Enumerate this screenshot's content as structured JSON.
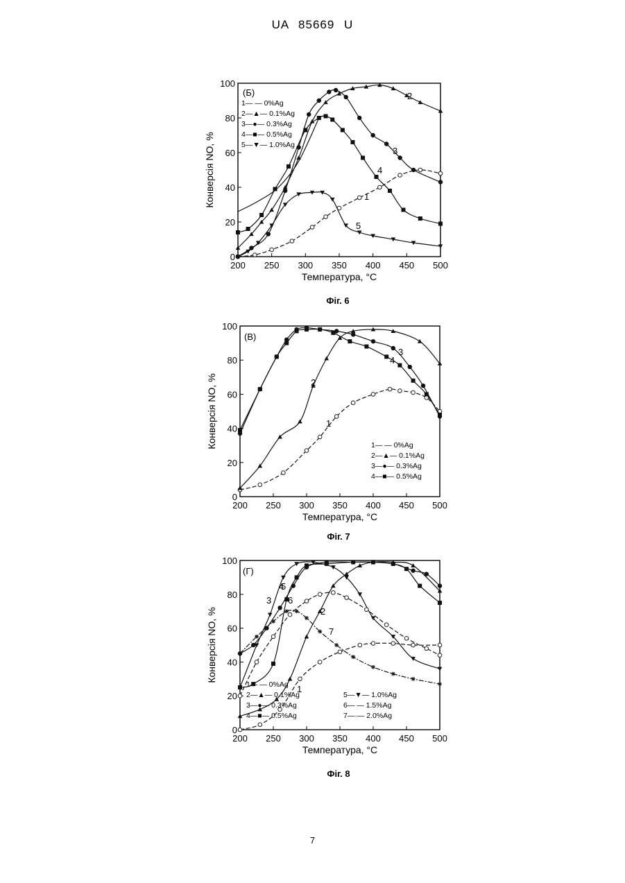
{
  "header": {
    "patent": "UA   85669   U"
  },
  "page_number": "7",
  "chart_data": [
    {
      "type": "line",
      "figure_label": "Фіг. 6",
      "panel_label": "(Б)",
      "xlabel": "Температура, °С",
      "ylabel": "Конверсія NO, %",
      "xlim": [
        200,
        500
      ],
      "ylim": [
        0,
        100
      ],
      "xticks": [
        200,
        250,
        300,
        350,
        400,
        450,
        500
      ],
      "yticks": [
        0,
        20,
        40,
        60,
        80,
        100
      ],
      "legend_position": "top-left",
      "series": [
        {
          "name": "0%Ag",
          "legend_label": "1— — 0%Ag",
          "curve_label": "1",
          "marker": "circle-open",
          "dashed": true,
          "x": [
            200,
            225,
            250,
            280,
            310,
            330,
            350,
            380,
            410,
            440,
            470,
            500
          ],
          "y": [
            0,
            1,
            4,
            9,
            17,
            23,
            28,
            34,
            40,
            47,
            50,
            48
          ]
        },
        {
          "name": "0.1%Ag",
          "legend_label": "2—▲— 0.1%Ag",
          "curve_label": "2",
          "marker": "triangle",
          "x": [
            200,
            220,
            235,
            250,
            270,
            290,
            310,
            330,
            350,
            370,
            390,
            410,
            430,
            450,
            470,
            500
          ],
          "y": [
            5,
            13,
            20,
            27,
            40,
            57,
            78,
            89,
            94,
            97,
            98,
            99,
            97,
            93,
            89,
            84
          ]
        },
        {
          "name": "0.3%Ag",
          "legend_label": "3—●— 0.3%Ag",
          "curve_label": "3",
          "marker": "circle-filled",
          "x": [
            200,
            220,
            245,
            270,
            290,
            305,
            320,
            335,
            345,
            360,
            380,
            400,
            420,
            440,
            460,
            500
          ],
          "y": [
            0,
            5,
            13,
            38,
            63,
            82,
            90,
            95,
            96,
            92,
            80,
            70,
            65,
            57,
            50,
            43
          ]
        },
        {
          "name": "0.5%Ag",
          "legend_label": "4—■— 0.5%Ag",
          "curve_label": "4",
          "marker": "square",
          "x": [
            200,
            215,
            235,
            255,
            275,
            300,
            320,
            330,
            340,
            355,
            370,
            385,
            405,
            425,
            445,
            470,
            500
          ],
          "y": [
            14,
            16,
            24,
            39,
            52,
            73,
            80,
            81,
            79,
            73,
            66,
            57,
            46,
            38,
            27,
            22,
            19
          ]
        },
        {
          "name": "1.0%Ag",
          "legend_label": "5—▼— 1.0%Ag",
          "curve_label": "5",
          "marker": "triangle-down",
          "x": [
            200,
            215,
            230,
            250,
            270,
            290,
            310,
            325,
            340,
            360,
            380,
            400,
            430,
            460,
            500
          ],
          "y": [
            0,
            3,
            8,
            18,
            30,
            36,
            37,
            37,
            33,
            18,
            14,
            12,
            10,
            8,
            6
          ]
        },
        {
          "name": "",
          "curve_label": "",
          "marker": "none",
          "x": [
            200,
            230,
            260,
            290,
            320
          ],
          "y": [
            26,
            32,
            40,
            55,
            80
          ]
        }
      ]
    },
    {
      "type": "line",
      "figure_label": "Фіг. 7",
      "panel_label": "(В)",
      "xlabel": "Температура, °С",
      "ylabel": "Конверсія NO, %",
      "xlim": [
        200,
        500
      ],
      "ylim": [
        0,
        100
      ],
      "xticks": [
        200,
        250,
        300,
        350,
        400,
        450,
        500
      ],
      "yticks": [
        0,
        20,
        40,
        60,
        80,
        100
      ],
      "legend_position": "bottom-right",
      "series": [
        {
          "name": "0%Ag",
          "legend_label": "1— — 0%Ag",
          "curve_label": "1",
          "marker": "circle-open",
          "dashed": true,
          "x": [
            200,
            230,
            265,
            300,
            320,
            345,
            370,
            400,
            425,
            440,
            460,
            480,
            500
          ],
          "y": [
            4,
            7,
            14,
            27,
            35,
            47,
            55,
            60,
            63,
            62,
            61,
            58,
            50
          ]
        },
        {
          "name": "0.1%Ag",
          "legend_label": "2—▲— 0.1%Ag",
          "curve_label": "2",
          "marker": "triangle",
          "x": [
            200,
            230,
            260,
            290,
            310,
            330,
            350,
            370,
            400,
            430,
            470,
            500
          ],
          "y": [
            5,
            18,
            35,
            44,
            65,
            81,
            93,
            97,
            98,
            97,
            91,
            78
          ]
        },
        {
          "name": "0.3%Ag",
          "legend_label": "3—●— 0.3%Ag",
          "curve_label": "3",
          "marker": "circle-filled",
          "x": [
            200,
            230,
            255,
            270,
            285,
            300,
            320,
            345,
            370,
            400,
            430,
            455,
            475,
            500
          ],
          "y": [
            37,
            63,
            82,
            92,
            98,
            99,
            98,
            97,
            95,
            91,
            87,
            76,
            65,
            47
          ]
        },
        {
          "name": "0.5%Ag",
          "legend_label": "4—■— 0.5%Ag",
          "curve_label": "4",
          "marker": "square",
          "x": [
            200,
            230,
            255,
            270,
            285,
            300,
            320,
            340,
            365,
            390,
            420,
            440,
            460,
            480,
            500
          ],
          "y": [
            39,
            63,
            82,
            90,
            97,
            98,
            98,
            96,
            91,
            88,
            82,
            77,
            68,
            60,
            48
          ]
        }
      ]
    },
    {
      "type": "line",
      "figure_label": "Фіг. 8",
      "panel_label": "(Г)",
      "xlabel": "Температура, °С",
      "ylabel": "Конверсія NO, %",
      "xlim": [
        200,
        500
      ],
      "ylim": [
        0,
        100
      ],
      "xticks": [
        200,
        250,
        300,
        350,
        400,
        450,
        500
      ],
      "yticks": [
        0,
        20,
        40,
        60,
        80,
        100
      ],
      "legend_position": "bottom",
      "series": [
        {
          "name": "0%Ag",
          "legend_label": "1— — 0%Ag",
          "curve_label": "1",
          "marker": "circle-open",
          "dashed": true,
          "x": [
            200,
            230,
            260,
            290,
            320,
            350,
            380,
            400,
            430,
            460,
            500
          ],
          "y": [
            0,
            3,
            12,
            30,
            40,
            46,
            50,
            51,
            51,
            50,
            50
          ]
        },
        {
          "name": "0.1%Ag",
          "legend_label": "2—▲— 0.1%Ag",
          "curve_label": "2",
          "marker": "triangle",
          "x": [
            200,
            230,
            255,
            275,
            300,
            320,
            340,
            360,
            380,
            400,
            430,
            460,
            500
          ],
          "y": [
            8,
            12,
            18,
            30,
            55,
            70,
            85,
            92,
            97,
            99,
            99,
            97,
            82
          ]
        },
        {
          "name": "0.3%Ag",
          "legend_label": "3—●— 0.3%Ag",
          "curve_label": "3",
          "marker": "circle-filled",
          "x": [
            200,
            220,
            240,
            260,
            280,
            300,
            330,
            370,
            400,
            430,
            460,
            480,
            500
          ],
          "y": [
            45,
            50,
            60,
            72,
            85,
            96,
            99,
            99,
            99,
            98,
            94,
            92,
            85
          ]
        },
        {
          "name": "0.5%Ag",
          "legend_label": "4—■— 0.5%Ag",
          "curve_label": "4",
          "marker": "square",
          "x": [
            200,
            220,
            250,
            270,
            285,
            300,
            330,
            370,
            400,
            430,
            450,
            470,
            500
          ],
          "y": [
            25,
            27,
            39,
            77,
            90,
            97,
            98,
            99,
            99,
            98,
            95,
            85,
            75
          ]
        },
        {
          "name": "1.0%Ag",
          "legend_label": "5—▼— 1.0%Ag",
          "curve_label": "5",
          "marker": "triangle-down",
          "x": [
            200,
            225,
            245,
            265,
            285,
            310,
            340,
            360,
            380,
            400,
            430,
            460,
            500
          ],
          "y": [
            25,
            50,
            68,
            90,
            98,
            99,
            96,
            90,
            80,
            66,
            55,
            42,
            36
          ]
        },
        {
          "name": "1.5%Ag",
          "legend_label": "6— — 1.5%Ag",
          "curve_label": "6",
          "marker": "circle-open",
          "dashed": true,
          "x": [
            200,
            225,
            250,
            275,
            300,
            320,
            340,
            360,
            390,
            420,
            450,
            480,
            500
          ],
          "y": [
            20,
            40,
            55,
            68,
            76,
            80,
            81,
            78,
            71,
            62,
            54,
            48,
            44
          ]
        },
        {
          "name": "2.0%Ag",
          "legend_label": "7—·— 2.0%Ag",
          "curve_label": "7",
          "marker": "star",
          "x": [
            200,
            225,
            250,
            270,
            285,
            300,
            320,
            345,
            370,
            400,
            430,
            460,
            500
          ],
          "y": [
            45,
            55,
            64,
            70,
            70,
            66,
            58,
            50,
            43,
            37,
            33,
            30,
            27
          ]
        }
      ]
    }
  ]
}
